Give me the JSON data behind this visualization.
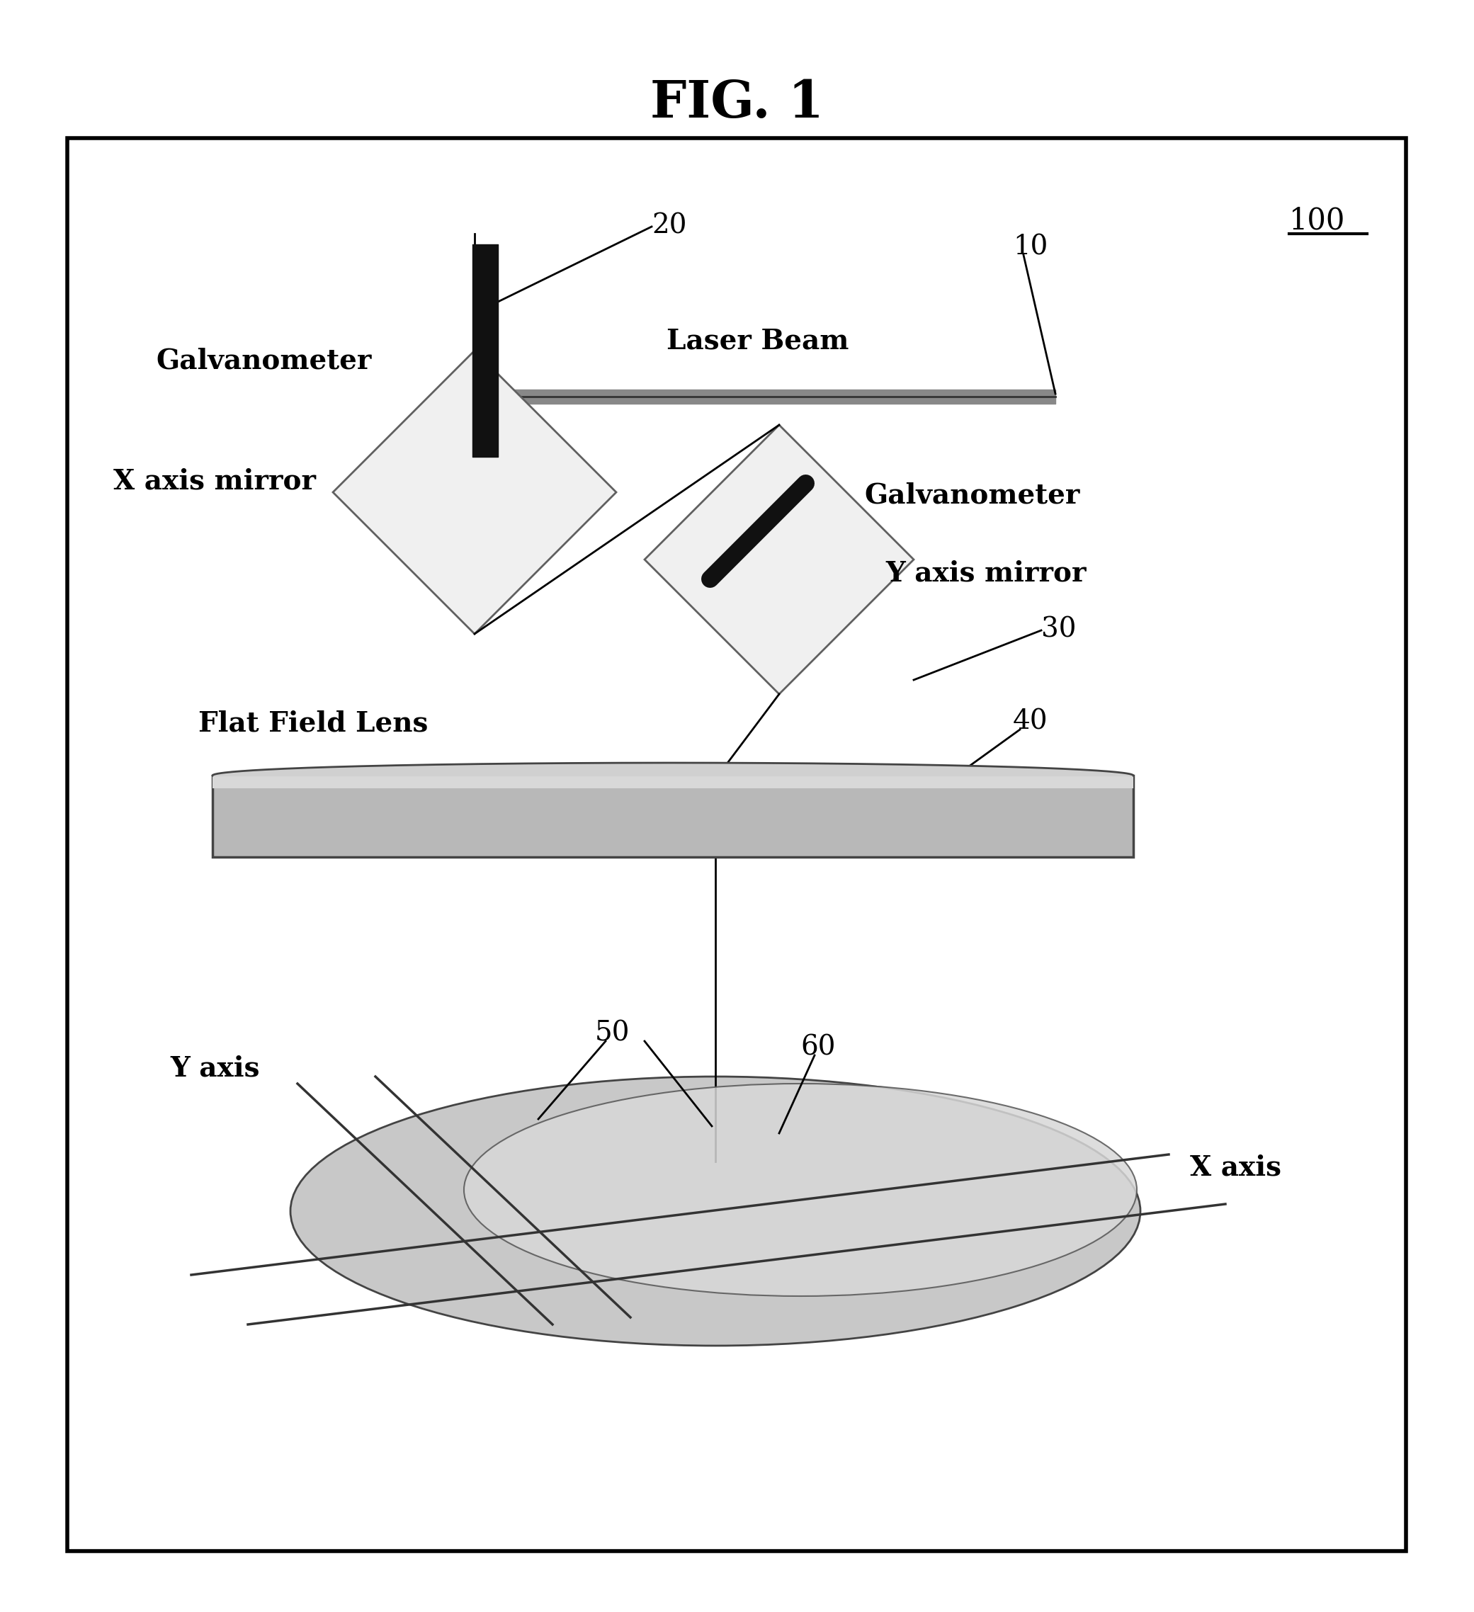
{
  "title": "FIG. 1",
  "bg": "#ffffff",
  "border_color": "#000000",
  "text_color": "#000000",
  "gray_light": "#c8c8c8",
  "gray_mid": "#a0a0a0",
  "gray_dark": "#606060",
  "black": "#000000",
  "label_100": "100",
  "label_20": "20",
  "label_10": "10",
  "label_30": "30",
  "label_40": "40",
  "label_50": "50",
  "label_60": "60",
  "text_galvanometer_left": "Galvanometer",
  "text_x_axis_mirror": "X axis mirror",
  "text_laser_beam": "Laser Beam",
  "text_galvanometer_right": "Galvanometer",
  "text_y_axis_mirror": "Y axis mirror",
  "text_flat_field_lens": "Flat Field Lens",
  "text_y_axis": "Y axis",
  "text_x_axis": "X axis"
}
